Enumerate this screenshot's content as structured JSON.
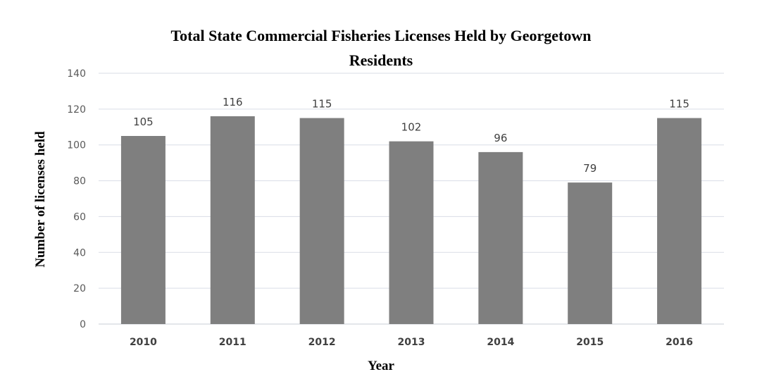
{
  "chart_data": {
    "type": "bar",
    "title_lines": [
      "Total State Commercial Fisheries Licenses Held by Georgetown",
      "Residents"
    ],
    "xlabel": "Year",
    "ylabel": "Number of licenses held",
    "categories": [
      "2010",
      "2011",
      "2012",
      "2013",
      "2014",
      "2015",
      "2016"
    ],
    "values": [
      105,
      116,
      115,
      102,
      96,
      79,
      115
    ],
    "data_labels": [
      "105",
      "116",
      "115",
      "102",
      "96",
      "79",
      "115"
    ],
    "ylim": [
      0,
      140
    ],
    "yticks": [
      "0",
      "20",
      "40",
      "60",
      "80",
      "100",
      "120",
      "140"
    ],
    "grid": true,
    "legend": "none",
    "bar_color": "#7f7f7f",
    "grid_color": "#d9dde6"
  }
}
